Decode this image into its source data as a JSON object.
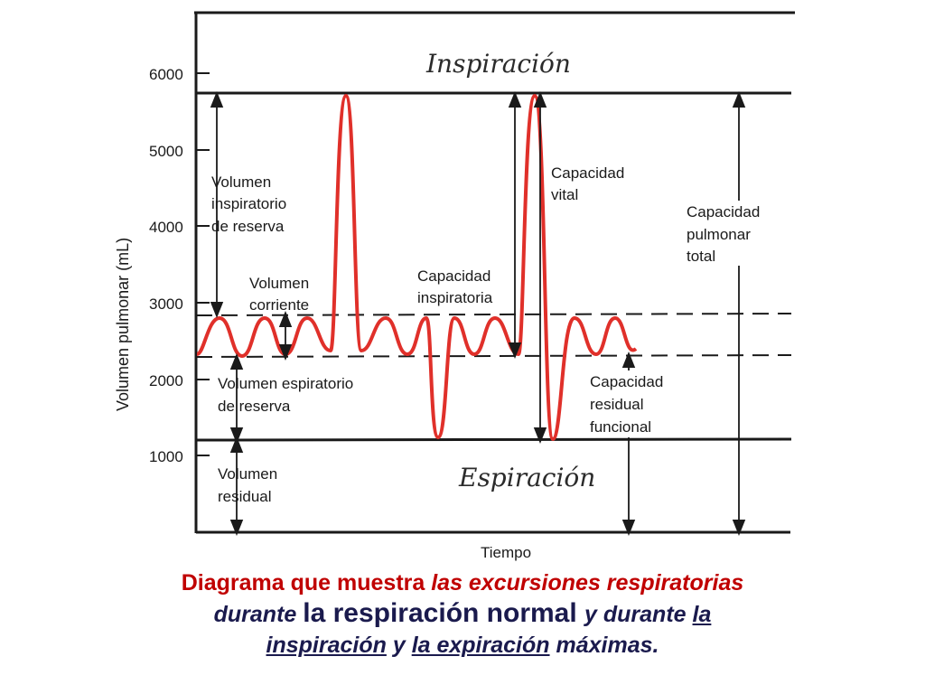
{
  "diagram": {
    "title_top": "Inspiración",
    "title_bottom": "Espiración",
    "y_axis_label": "Volumen pulmonar (mL)",
    "x_axis_label": "Tiempo",
    "y_ticks": [
      "6000",
      "5000",
      "4000",
      "3000",
      "2000",
      "1000"
    ],
    "labels": {
      "irv_1": "Volumen",
      "irv_2": "inspiratorio",
      "irv_3": "de reserva",
      "tv_1": "Volumen",
      "tv_2": "corriente",
      "erv_1": "Volumen espiratorio",
      "erv_2": "de reserva",
      "rv_1": "Volumen",
      "rv_2": "residual",
      "ic_1": "Capacidad",
      "ic_2": "inspiratoria",
      "vc_1": "Capacidad",
      "vc_2": "vital",
      "tlc_1": "Capacidad",
      "tlc_2": "pulmonar",
      "tlc_3": "total",
      "frc_1": "Capacidad",
      "frc_2": "residual",
      "frc_3": "funcional"
    },
    "colors": {
      "curve": "#e0302a",
      "lines": "#1a1a1a"
    }
  },
  "caption": {
    "l1a": "Diagrama que muestra ",
    "l1b": "las excursiones respiratorias",
    "l2a": "durante ",
    "l2b": "la respiración normal ",
    "l2c": "y durante ",
    "l2d": "la",
    "l3a": "inspiración",
    "l3b": " y ",
    "l3c": "la expiración",
    "l3d": " máximas."
  }
}
